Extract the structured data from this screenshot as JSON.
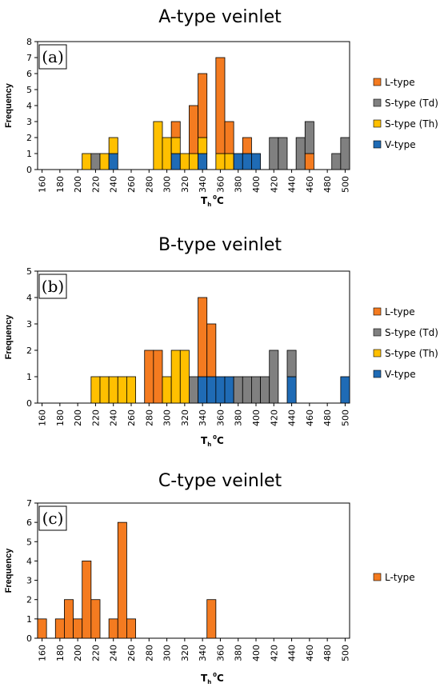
{
  "colors": {
    "L-type": "#F47B20",
    "S-type (Td)": "#808080",
    "S-type (Th)": "#FFC000",
    "V-type": "#1F6BB5"
  },
  "chart_data": [
    {
      "type": "bar",
      "stacked": true,
      "title": "A-type veinlet",
      "panel_label": "(a)",
      "xlabel": {
        "main": "T",
        "sub": "h",
        "sup": "0",
        "unit": "C"
      },
      "ylabel": "Frequency",
      "ylim": [
        0,
        8
      ],
      "yticks": [
        0,
        1,
        2,
        3,
        4,
        5,
        6,
        7,
        8
      ],
      "bin_start": 160,
      "bin_width": 10,
      "bin_count": 35,
      "x_tick_labels": [
        "160",
        "180",
        "200",
        "220",
        "240",
        "260",
        "280",
        "300",
        "320",
        "340",
        "360",
        "380",
        "400",
        "420",
        "440",
        "460",
        "480",
        "500"
      ],
      "legend_position": "right",
      "series": [
        {
          "name": "L-type",
          "values": [
            0,
            0,
            0,
            0,
            0,
            0,
            0,
            0,
            0,
            0,
            0,
            0,
            0,
            0,
            0,
            1,
            0,
            3,
            4,
            0,
            6,
            2,
            0,
            1,
            0,
            0,
            0,
            0,
            0,
            0,
            1,
            0,
            0,
            0,
            0
          ]
        },
        {
          "name": "S-type (Td)",
          "values": [
            0,
            0,
            0,
            0,
            0,
            0,
            1,
            0,
            0,
            0,
            0,
            0,
            0,
            0,
            0,
            0,
            0,
            0,
            0,
            0,
            0,
            0,
            0,
            0,
            0,
            0,
            2,
            2,
            0,
            2,
            2,
            0,
            0,
            1,
            2
          ]
        },
        {
          "name": "S-type (Th)",
          "values": [
            0,
            0,
            0,
            0,
            0,
            1,
            0,
            1,
            1,
            0,
            0,
            0,
            0,
            3,
            2,
            1,
            1,
            1,
            1,
            0,
            1,
            1,
            0,
            0,
            0,
            0,
            0,
            0,
            0,
            0,
            0,
            0,
            0,
            0,
            0
          ]
        },
        {
          "name": "V-type",
          "values": [
            0,
            0,
            0,
            0,
            0,
            0,
            0,
            0,
            1,
            0,
            0,
            0,
            0,
            0,
            0,
            1,
            0,
            0,
            1,
            0,
            0,
            0,
            1,
            1,
            1,
            0,
            0,
            0,
            0,
            0,
            0,
            0,
            0,
            0,
            0
          ]
        }
      ]
    },
    {
      "type": "bar",
      "stacked": true,
      "title": "B-type veinlet",
      "panel_label": "(b)",
      "xlabel": {
        "main": "T",
        "sub": "h",
        "sup": "0",
        "unit": "C"
      },
      "ylabel": "Frequency",
      "ylim": [
        0,
        5
      ],
      "yticks": [
        0,
        1,
        2,
        3,
        4,
        5
      ],
      "bin_start": 160,
      "bin_width": 10,
      "bin_count": 35,
      "x_tick_labels": [
        "160",
        "180",
        "200",
        "220",
        "240",
        "260",
        "280",
        "300",
        "320",
        "340",
        "360",
        "380",
        "400",
        "420",
        "440",
        "460",
        "480",
        "500"
      ],
      "legend_position": "right",
      "series": [
        {
          "name": "L-type",
          "values": [
            0,
            0,
            0,
            0,
            0,
            0,
            0,
            0,
            0,
            0,
            0,
            0,
            2,
            2,
            0,
            0,
            0,
            0,
            3,
            2,
            0,
            0,
            0,
            0,
            0,
            0,
            0,
            0,
            0,
            0,
            0,
            0,
            0,
            0,
            0
          ]
        },
        {
          "name": "S-type (Td)",
          "values": [
            0,
            0,
            0,
            0,
            0,
            0,
            0,
            0,
            0,
            0,
            0,
            0,
            0,
            0,
            0,
            0,
            0,
            1,
            0,
            0,
            0,
            0,
            1,
            1,
            1,
            1,
            2,
            0,
            1,
            0,
            0,
            0,
            0,
            0,
            0
          ]
        },
        {
          "name": "S-type (Th)",
          "values": [
            0,
            0,
            0,
            0,
            0,
            0,
            1,
            1,
            1,
            1,
            1,
            0,
            0,
            0,
            1,
            2,
            2,
            0,
            0,
            0,
            0,
            0,
            0,
            0,
            0,
            0,
            0,
            0,
            0,
            0,
            0,
            0,
            0,
            0,
            0
          ]
        },
        {
          "name": "V-type",
          "values": [
            0,
            0,
            0,
            0,
            0,
            0,
            0,
            0,
            0,
            0,
            0,
            0,
            0,
            0,
            0,
            0,
            0,
            0,
            1,
            1,
            1,
            1,
            0,
            0,
            0,
            0,
            0,
            0,
            1,
            0,
            0,
            0,
            0,
            0,
            1
          ]
        }
      ]
    },
    {
      "type": "bar",
      "stacked": true,
      "title": "C-type veinlet",
      "panel_label": "(c)",
      "xlabel": {
        "main": "T",
        "sub": "h",
        "sup": "0",
        "unit": "C"
      },
      "ylabel": "Frequency",
      "ylim": [
        0,
        7
      ],
      "yticks": [
        0,
        1,
        2,
        3,
        4,
        5,
        6,
        7
      ],
      "bin_start": 160,
      "bin_width": 10,
      "bin_count": 35,
      "x_tick_labels": [
        "160",
        "180",
        "200",
        "220",
        "240",
        "260",
        "280",
        "300",
        "320",
        "340",
        "360",
        "380",
        "400",
        "420",
        "440",
        "460",
        "480",
        "500"
      ],
      "legend_position": "right",
      "series": [
        {
          "name": "L-type",
          "values": [
            1,
            0,
            1,
            2,
            1,
            4,
            2,
            0,
            1,
            6,
            1,
            0,
            0,
            0,
            0,
            0,
            0,
            0,
            0,
            2,
            0,
            0,
            0,
            0,
            0,
            0,
            0,
            0,
            0,
            0,
            0,
            0,
            0,
            0,
            0
          ]
        }
      ]
    }
  ]
}
